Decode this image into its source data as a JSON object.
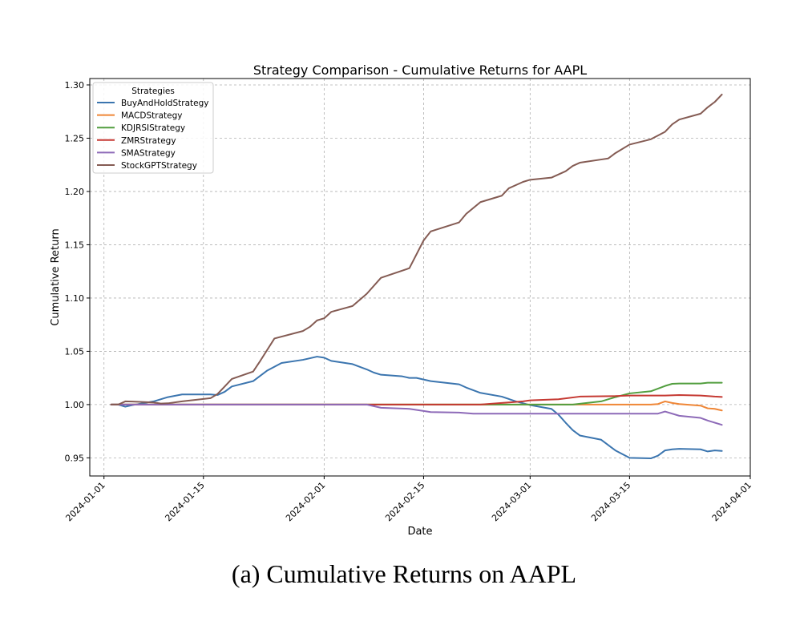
{
  "caption": "(a) Cumulative Returns on AAPL",
  "colors": {
    "BuyAndHoldStrategy": "#3b75af",
    "MACDStrategy": "#ef8636",
    "KDJRSIStrategy": "#529e3f",
    "ZMRStrategy": "#c53932",
    "SMAStrategy": "#8d6ab8",
    "StockGPTStrategy": "#845b53"
  },
  "chart_data": {
    "type": "line",
    "title": "Strategy Comparison - Cumulative Returns for AAPL",
    "xlabel": "Date",
    "ylabel": "Cumulative Return",
    "xlim": [
      "2023-12-30",
      "2024-04-01"
    ],
    "ylim": [
      0.933,
      1.306
    ],
    "xticks": [
      "2024-01-01",
      "2024-01-15",
      "2024-02-01",
      "2024-02-15",
      "2024-03-01",
      "2024-03-15",
      "2024-04-01"
    ],
    "yticks": [
      0.95,
      1.0,
      1.05,
      1.1,
      1.15,
      1.2,
      1.25,
      1.3
    ],
    "ytick_labels": [
      "0.95",
      "1.00",
      "1.05",
      "1.10",
      "1.15",
      "1.20",
      "1.25",
      "1.30"
    ],
    "grid": true,
    "legend_title": "Strategies",
    "legend_position": "top-left",
    "series": [
      {
        "name": "BuyAndHoldStrategy",
        "points": [
          [
            "2024-01-02",
            1.0
          ],
          [
            "2024-01-03",
            1.0
          ],
          [
            "2024-01-04",
            0.998
          ],
          [
            "2024-01-05",
            0.9995
          ],
          [
            "2024-01-08",
            1.003
          ],
          [
            "2024-01-10",
            1.007
          ],
          [
            "2024-01-12",
            1.0095
          ],
          [
            "2024-01-16",
            1.0095
          ],
          [
            "2024-01-17",
            1.009
          ],
          [
            "2024-01-18",
            1.012
          ],
          [
            "2024-01-19",
            1.017
          ],
          [
            "2024-01-22",
            1.022
          ],
          [
            "2024-01-24",
            1.032
          ],
          [
            "2024-01-26",
            1.039
          ],
          [
            "2024-01-29",
            1.042
          ],
          [
            "2024-01-31",
            1.045
          ],
          [
            "2024-02-01",
            1.044
          ],
          [
            "2024-02-02",
            1.041
          ],
          [
            "2024-02-05",
            1.038
          ],
          [
            "2024-02-07",
            1.033
          ],
          [
            "2024-02-08",
            1.03
          ],
          [
            "2024-02-09",
            1.028
          ],
          [
            "2024-02-12",
            1.0265
          ],
          [
            "2024-02-13",
            1.025
          ],
          [
            "2024-02-14",
            1.025
          ],
          [
            "2024-02-15",
            1.0235
          ],
          [
            "2024-02-16",
            1.022
          ],
          [
            "2024-02-20",
            1.019
          ],
          [
            "2024-02-21",
            1.016
          ],
          [
            "2024-02-23",
            1.011
          ],
          [
            "2024-02-26",
            1.0075
          ],
          [
            "2024-02-28",
            1.003
          ],
          [
            "2024-03-01",
            0.9995
          ],
          [
            "2024-03-04",
            0.996
          ],
          [
            "2024-03-05",
            0.9905
          ],
          [
            "2024-03-06",
            0.983
          ],
          [
            "2024-03-07",
            0.976
          ],
          [
            "2024-03-08",
            0.971
          ],
          [
            "2024-03-11",
            0.967
          ],
          [
            "2024-03-12",
            0.962
          ],
          [
            "2024-03-13",
            0.957
          ],
          [
            "2024-03-14",
            0.9535
          ],
          [
            "2024-03-15",
            0.95
          ],
          [
            "2024-03-18",
            0.9495
          ],
          [
            "2024-03-19",
            0.952
          ],
          [
            "2024-03-20",
            0.957
          ],
          [
            "2024-03-21",
            0.958
          ],
          [
            "2024-03-22",
            0.9585
          ],
          [
            "2024-03-25",
            0.958
          ],
          [
            "2024-03-26",
            0.956
          ],
          [
            "2024-03-27",
            0.957
          ],
          [
            "2024-03-28",
            0.9565
          ]
        ]
      },
      {
        "name": "MACDStrategy",
        "points": [
          [
            "2024-01-02",
            1.0
          ],
          [
            "2024-03-18",
            1.0
          ],
          [
            "2024-03-19",
            1.0005
          ],
          [
            "2024-03-20",
            1.003
          ],
          [
            "2024-03-21",
            1.0015
          ],
          [
            "2024-03-22",
            1.0005
          ],
          [
            "2024-03-25",
            0.999
          ],
          [
            "2024-03-26",
            0.9965
          ],
          [
            "2024-03-27",
            0.996
          ],
          [
            "2024-03-28",
            0.9945
          ]
        ]
      },
      {
        "name": "KDJRSIStrategy",
        "points": [
          [
            "2024-01-02",
            1.0
          ],
          [
            "2024-03-07",
            1.0
          ],
          [
            "2024-03-11",
            1.003
          ],
          [
            "2024-03-13",
            1.007
          ],
          [
            "2024-03-15",
            1.0105
          ],
          [
            "2024-03-18",
            1.0125
          ],
          [
            "2024-03-20",
            1.0175
          ],
          [
            "2024-03-21",
            1.0195
          ],
          [
            "2024-03-22",
            1.0198
          ],
          [
            "2024-03-25",
            1.0198
          ],
          [
            "2024-03-26",
            1.0205
          ],
          [
            "2024-03-28",
            1.0205
          ]
        ]
      },
      {
        "name": "ZMRStrategy",
        "points": [
          [
            "2024-01-02",
            1.0
          ],
          [
            "2024-02-23",
            1.0
          ],
          [
            "2024-02-26",
            1.0015
          ],
          [
            "2024-02-29",
            1.003
          ],
          [
            "2024-03-01",
            1.004
          ],
          [
            "2024-03-05",
            1.005
          ],
          [
            "2024-03-08",
            1.0075
          ],
          [
            "2024-03-13",
            1.008
          ],
          [
            "2024-03-15",
            1.0085
          ],
          [
            "2024-03-20",
            1.0085
          ],
          [
            "2024-03-22",
            1.009
          ],
          [
            "2024-03-25",
            1.0085
          ],
          [
            "2024-03-27",
            1.0075
          ],
          [
            "2024-03-28",
            1.0072
          ]
        ]
      },
      {
        "name": "SMAStrategy",
        "points": [
          [
            "2024-01-02",
            1.0
          ],
          [
            "2024-02-07",
            1.0
          ],
          [
            "2024-02-09",
            0.997
          ],
          [
            "2024-02-13",
            0.996
          ],
          [
            "2024-02-15",
            0.994
          ],
          [
            "2024-02-16",
            0.993
          ],
          [
            "2024-02-20",
            0.9925
          ],
          [
            "2024-02-22",
            0.9915
          ],
          [
            "2024-03-19",
            0.9915
          ],
          [
            "2024-03-20",
            0.9935
          ],
          [
            "2024-03-22",
            0.9895
          ],
          [
            "2024-03-25",
            0.9875
          ],
          [
            "2024-03-26",
            0.985
          ],
          [
            "2024-03-28",
            0.981
          ]
        ]
      },
      {
        "name": "StockGPTStrategy",
        "points": [
          [
            "2024-01-02",
            1.0
          ],
          [
            "2024-01-03",
            1.0
          ],
          [
            "2024-01-04",
            1.003
          ],
          [
            "2024-01-05",
            1.0028
          ],
          [
            "2024-01-08",
            1.002
          ],
          [
            "2024-01-09",
            1.001
          ],
          [
            "2024-01-10",
            1.0012
          ],
          [
            "2024-01-12",
            1.003
          ],
          [
            "2024-01-16",
            1.006
          ],
          [
            "2024-01-17",
            1.01
          ],
          [
            "2024-01-18",
            1.017
          ],
          [
            "2024-01-19",
            1.024
          ],
          [
            "2024-01-22",
            1.031
          ],
          [
            "2024-01-23",
            1.041
          ],
          [
            "2024-01-25",
            1.062
          ],
          [
            "2024-01-29",
            1.069
          ],
          [
            "2024-01-30",
            1.073
          ],
          [
            "2024-01-31",
            1.079
          ],
          [
            "2024-02-01",
            1.081
          ],
          [
            "2024-02-02",
            1.087
          ],
          [
            "2024-02-05",
            1.0925
          ],
          [
            "2024-02-07",
            1.104
          ],
          [
            "2024-02-09",
            1.119
          ],
          [
            "2024-02-13",
            1.128
          ],
          [
            "2024-02-14",
            1.141
          ],
          [
            "2024-02-15",
            1.154
          ],
          [
            "2024-02-16",
            1.1625
          ],
          [
            "2024-02-20",
            1.171
          ],
          [
            "2024-02-21",
            1.179
          ],
          [
            "2024-02-23",
            1.19
          ],
          [
            "2024-02-26",
            1.196
          ],
          [
            "2024-02-27",
            1.203
          ],
          [
            "2024-02-29",
            1.209
          ],
          [
            "2024-03-01",
            1.211
          ],
          [
            "2024-03-04",
            1.213
          ],
          [
            "2024-03-06",
            1.219
          ],
          [
            "2024-03-07",
            1.224
          ],
          [
            "2024-03-08",
            1.227
          ],
          [
            "2024-03-11",
            1.23
          ],
          [
            "2024-03-12",
            1.231
          ],
          [
            "2024-03-13",
            1.236
          ],
          [
            "2024-03-15",
            1.244
          ],
          [
            "2024-03-18",
            1.249
          ],
          [
            "2024-03-20",
            1.256
          ],
          [
            "2024-03-21",
            1.263
          ],
          [
            "2024-03-22",
            1.2675
          ],
          [
            "2024-03-25",
            1.273
          ],
          [
            "2024-03-26",
            1.279
          ],
          [
            "2024-03-27",
            1.284
          ],
          [
            "2024-03-28",
            1.291
          ]
        ]
      }
    ]
  }
}
